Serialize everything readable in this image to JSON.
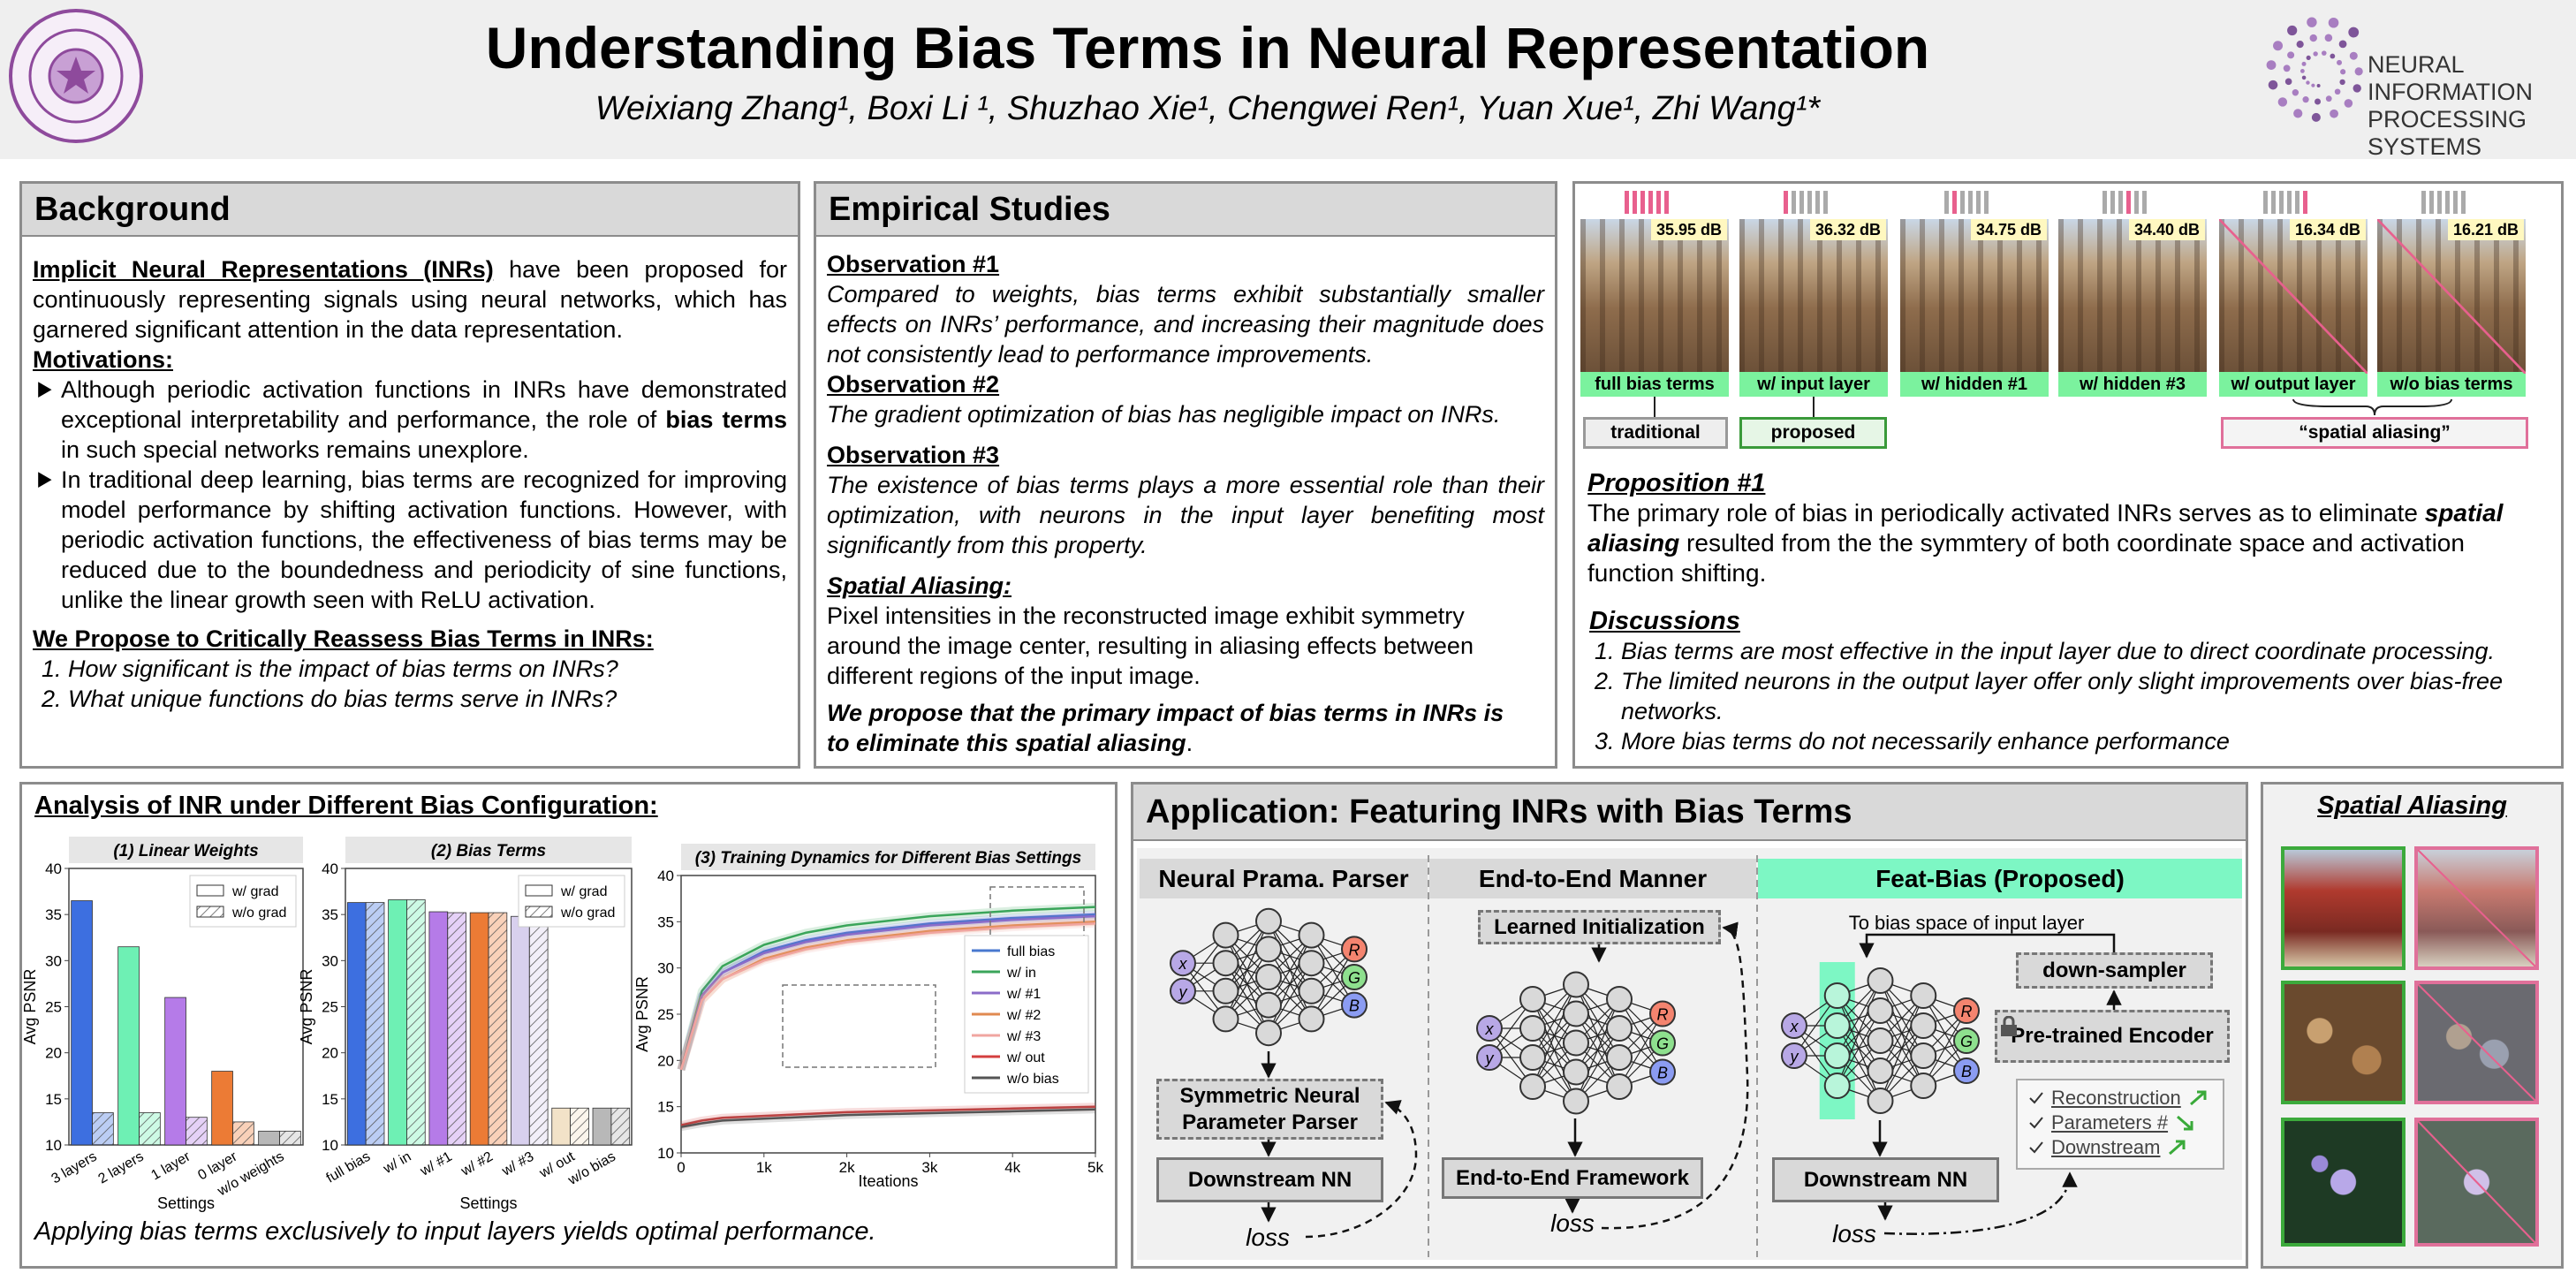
{
  "header": {
    "title": "Understanding Bias Terms in Neural Representation",
    "authors": "Weixiang Zhang¹, Boxi Li ¹, Shuzhao Xie¹, Chengwei Ren¹, Yuan Xue¹, Zhi Wang¹*",
    "logo_text": [
      "NEURAL INFORMATION",
      "PROCESSING SYSTEMS"
    ]
  },
  "background": {
    "heading": "Background",
    "intro": [
      "Implicit Neural Representations (INRs)",
      " have been proposed for continuously representing signals using neural networks, which has garnered significant attention in the data representation."
    ],
    "motivations_heading": "Motivations:",
    "motivations": [
      [
        "Although periodic activation functions in INRs have demonstrated exceptional interpretability and performance, the role of ",
        "bias terms",
        " in such special networks remains unexplore."
      ],
      [
        "In traditional deep learning, bias terms are recognized for improving model performance by shifting activation functions. However, with periodic activation functions, the effectiveness of bias terms may be reduced due to the boundedness and periodicity of sine functions, unlike the linear growth seen with ReLU activation."
      ]
    ],
    "propose_heading": "We Propose to Critically Reassess Bias Terms in INRs:",
    "questions": [
      "How significant is the impact of bias terms on INRs?",
      "What unique functions do bias terms serve in INRs?"
    ]
  },
  "empirical": {
    "heading": "Empirical Studies",
    "observations": [
      {
        "title": "Observation #1",
        "text": "Compared to weights, bias terms exhibit substantially smaller effects on INRs’ performance, and increasing their magnitude does not consistently lead to performance improvements."
      },
      {
        "title": "Observation #2",
        "text": "The gradient optimization of bias has negligible impact on INRs."
      },
      {
        "title": "Observation #3",
        "text": "The existence of bias terms plays a more essential role than their optimization, with neurons in the input layer benefiting most significantly from this property."
      }
    ],
    "aliasing_title": "Spatial Aliasing:",
    "aliasing_text": "Pixel intensities in the reconstructed image exhibit symmetry around the image center, resulting in aliasing effects between different regions of the input image.",
    "conclusion": [
      "We propose that the primary impact of bias terms in INRs is to eliminate this spatial aliasing",
      "."
    ]
  },
  "figure": {
    "psnr": [
      "35.95 dB",
      "36.32 dB",
      "34.75 dB",
      "34.40 dB",
      "16.34 dB",
      "16.21 dB"
    ],
    "captions": [
      "full bias terms",
      "w/ input layer",
      "w/ hidden #1",
      "w/ hidden #3",
      "w/ output layer",
      "w/o  bias terms"
    ],
    "tags": [
      "traditional",
      "proposed",
      "“spatial aliasing”"
    ]
  },
  "proposition": {
    "title": "Proposition #1",
    "text": [
      "The primary role of bias in periodically activated INRs serves as to eliminate ",
      "spatial aliasing",
      " resulted from the the symmtery of both coordinate space and activation function shifting."
    ]
  },
  "discussions": {
    "title": "Discussions",
    "items": [
      "Bias terms are most effective in the input layer due to direct coordinate processing.",
      "The limited neurons in the output layer offer only slight improvements over bias-free networks.",
      "More bias terms do not necessarily enhance performance"
    ]
  },
  "analysis": {
    "heading": "Analysis of INR under Different Bias Configuration:",
    "conclusion": "Applying bias terms exclusively to input layers yields optimal performance."
  },
  "application": {
    "heading": "Application: Featuring INRs with Bias Terms",
    "node_labels": [
      "x",
      "y",
      "R",
      "G",
      "B"
    ],
    "columns": [
      {
        "title": "Neural Prama. Parser",
        "boxes": [
          "Symmetric Neural Parameter Parser",
          "Downstream NN"
        ],
        "loss": "loss"
      },
      {
        "title": "End-to-End Manner",
        "boxes": [
          "Learned Initialization",
          "End-to-End Framework"
        ],
        "loss": "loss"
      },
      {
        "title": "Feat-Bias (Proposed)",
        "note": "To bias space of input layer",
        "boxes": [
          "down-sampler",
          "Pre-trained Encoder",
          "Downstream NN"
        ],
        "loss": "loss",
        "checks": [
          "Reconstruction",
          "Parameters #",
          "Downstream"
        ]
      }
    ]
  },
  "aliasing_panel": {
    "heading": "Spatial Aliasing"
  },
  "chart_data": [
    {
      "type": "bar",
      "title": "(1)  Linear Weights",
      "categories": [
        "3 layers",
        "2 layers",
        "1 layer",
        "0 layer",
        "w/o weights"
      ],
      "colors": [
        "#3d6fe0",
        "#6ef0b4",
        "#b57be8",
        "#ec7b35",
        "#b8b8b8"
      ],
      "series": [
        {
          "name": "w/ grad",
          "hatched": false,
          "values": [
            36.5,
            31.5,
            26,
            18,
            11.5
          ]
        },
        {
          "name": "w/o grad",
          "hatched": true,
          "values": [
            13.5,
            13.5,
            13,
            12.5,
            11.5
          ]
        }
      ],
      "xlabel": "Settings",
      "ylabel": "Avg PSNR",
      "ylim": [
        10,
        40
      ],
      "yticks": [
        10,
        15,
        20,
        25,
        30,
        35,
        40
      ],
      "legend": "upper right"
    },
    {
      "type": "bar",
      "title": "(2)  Bias Terms",
      "categories": [
        "full bias",
        "w/ in",
        "w/ #1",
        "w/ #2",
        "w/ #3",
        "w/ out",
        "w/o bias"
      ],
      "colors": [
        "#3d6fe0",
        "#6ef0b4",
        "#b57be8",
        "#ec7b35",
        "#d8d0ee",
        "#f2e2c8",
        "#b8b8b8"
      ],
      "series": [
        {
          "name": "w/ grad",
          "hatched": false,
          "values": [
            36.3,
            36.6,
            35.3,
            35.2,
            34.8,
            14,
            14
          ]
        },
        {
          "name": "w/o grad",
          "hatched": true,
          "values": [
            36.3,
            36.6,
            35.2,
            35.2,
            34.8,
            14,
            14
          ]
        }
      ],
      "xlabel": "Settings",
      "ylabel": "Avg PSNR",
      "ylim": [
        10,
        40
      ],
      "yticks": [
        10,
        15,
        20,
        25,
        30,
        35,
        40
      ],
      "legend": "upper right"
    },
    {
      "type": "line",
      "title": "(3)  Training Dynamics for Different Bias Settings",
      "x": [
        0,
        250,
        500,
        1000,
        1500,
        2000,
        3000,
        4000,
        5000
      ],
      "series": [
        {
          "name": "full bias",
          "color": "#4878cf",
          "values": [
            19,
            27,
            29.5,
            31.8,
            33,
            33.8,
            34.8,
            35.4,
            35.8
          ]
        },
        {
          "name": "w/ in",
          "color": "#3aa55a",
          "values": [
            19,
            27.5,
            30.2,
            32.5,
            33.8,
            34.6,
            35.6,
            36.2,
            36.6
          ]
        },
        {
          "name": "w/ #1",
          "color": "#8b6cc8",
          "values": [
            19,
            27,
            29.5,
            31.6,
            32.8,
            33.6,
            34.6,
            35.2,
            35.6
          ]
        },
        {
          "name": "w/ #2",
          "color": "#e08a50",
          "values": [
            19,
            26.5,
            28.8,
            31,
            32.2,
            33,
            34,
            34.6,
            35
          ]
        },
        {
          "name": "w/ #3",
          "color": "#f0a5a0",
          "values": [
            19,
            26.5,
            28.8,
            30.8,
            32,
            32.8,
            33.8,
            34.4,
            34.8
          ]
        },
        {
          "name": "w/ out",
          "color": "#d43f3f",
          "values": [
            13,
            13.5,
            13.8,
            14,
            14.2,
            14.4,
            14.6,
            14.8,
            15
          ]
        },
        {
          "name": "w/o bias",
          "color": "#555555",
          "values": [
            12.8,
            13.2,
            13.5,
            13.7,
            13.9,
            14.1,
            14.3,
            14.5,
            14.7
          ]
        }
      ],
      "xlabel": "Iteations",
      "ylabel": "Avg PSNR",
      "xlim": [
        0,
        5000
      ],
      "xticks": [
        0,
        {
          "value": 1000,
          "label": "1k"
        },
        {
          "value": 2000,
          "label": "2k"
        },
        {
          "value": 3000,
          "label": "3k"
        },
        {
          "value": 4000,
          "label": "4k"
        },
        {
          "value": 5000,
          "label": "5k"
        }
      ],
      "ylim": [
        10,
        40
      ],
      "yticks": [
        10,
        15,
        20,
        25,
        30,
        35,
        40
      ],
      "legend": "center right"
    }
  ]
}
